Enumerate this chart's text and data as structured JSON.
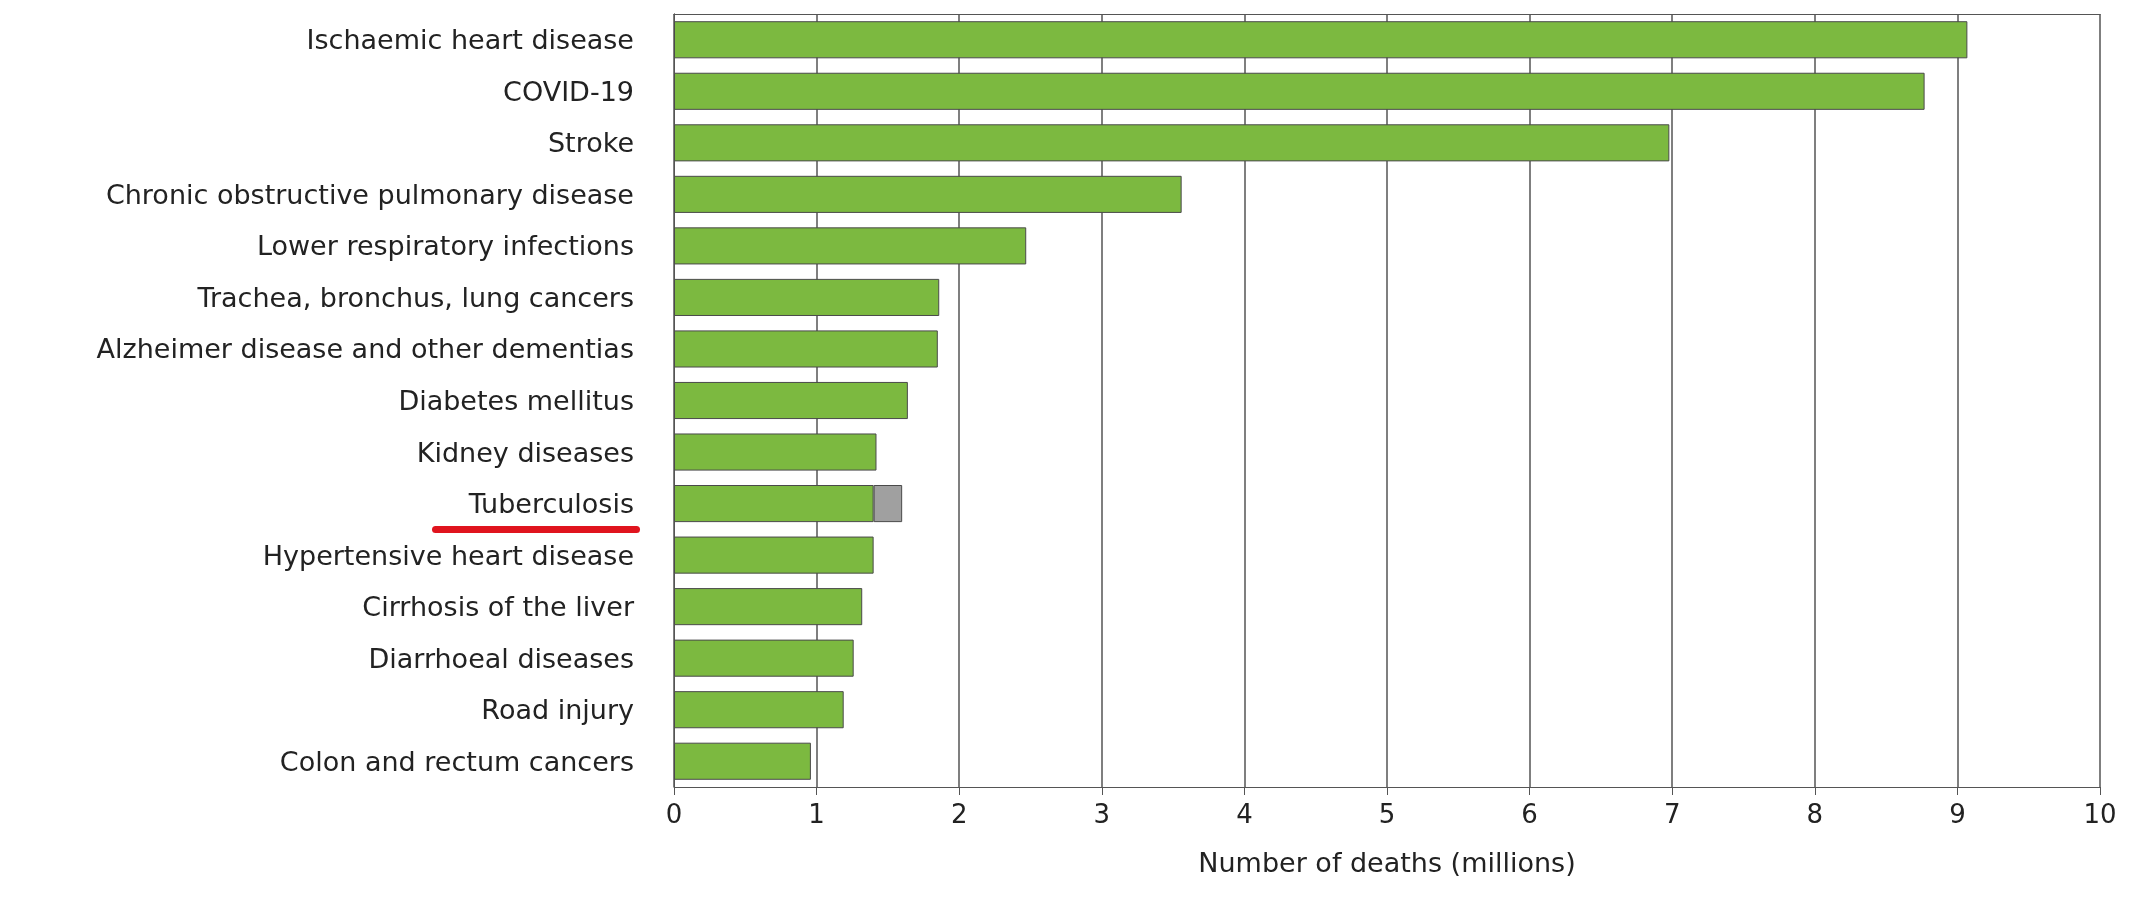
{
  "chart_data": {
    "type": "bar",
    "orientation": "horizontal",
    "stacked": true,
    "xlabel": "Number of deaths (millions)",
    "categories": [
      "Ischaemic heart disease",
      "COVID-19",
      "Stroke",
      "Chronic obstructive pulmonary disease",
      "Lower respiratory infections",
      "Trachea, bronchus, lung cancers",
      "Alzheimer disease and other dementias",
      "Diabetes mellitus",
      "Kidney diseases",
      "Tuberculosis",
      "Hypertensive heart disease",
      "Cirrhosis of the liver",
      "Diarrhoeal diseases",
      "Road injury",
      "Colon and rectum cancers"
    ],
    "series": [
      {
        "color": "#7cb940",
        "values": [
          9.07,
          8.77,
          6.98,
          3.56,
          2.47,
          1.86,
          1.85,
          1.64,
          1.42,
          1.4,
          1.4,
          1.32,
          1.26,
          1.19,
          0.96
        ]
      },
      {
        "color": "#a0a0a0",
        "values": [
          null,
          null,
          null,
          null,
          null,
          null,
          null,
          null,
          null,
          0.2,
          null,
          null,
          null,
          null,
          null
        ]
      }
    ],
    "xlim": [
      0,
      10
    ],
    "xticks": [
      0,
      1,
      2,
      3,
      4,
      5,
      6,
      7,
      8,
      9,
      10
    ],
    "grid": "x"
  }
}
